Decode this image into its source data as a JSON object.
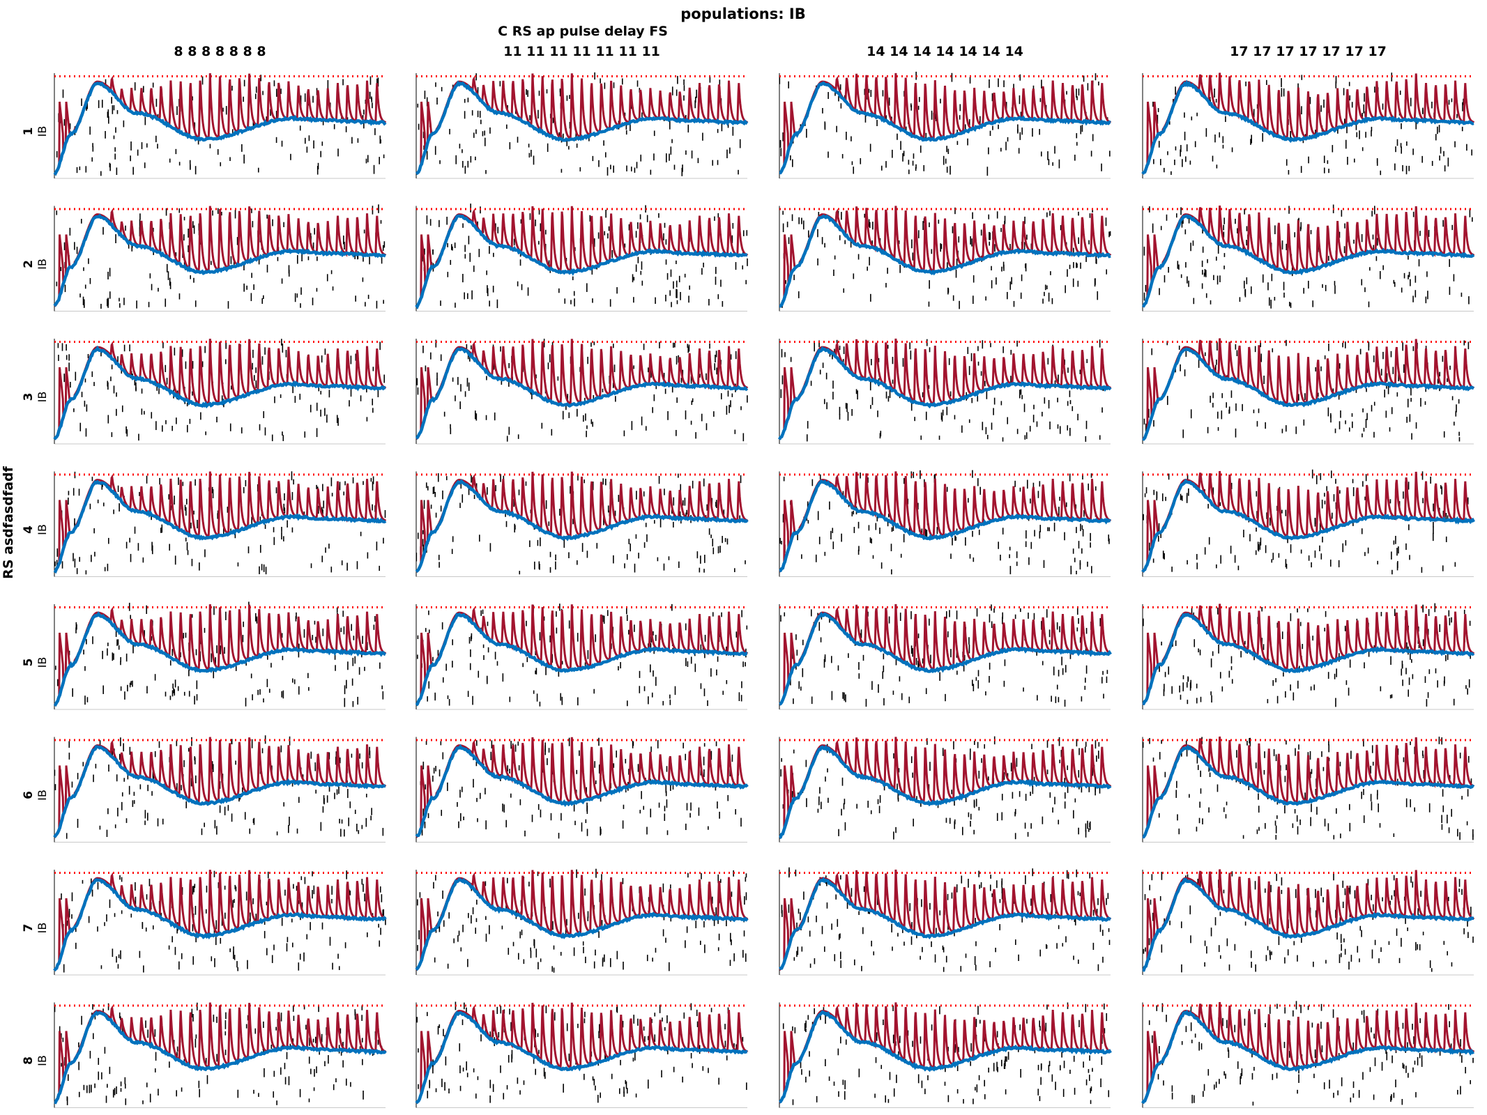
{
  "figure": {
    "suptitle": "populations: IB",
    "varied_label": "C RS ap pulse delay FS",
    "ylabel": "RS asdfasdfadf"
  },
  "columns": [
    {
      "label": "8 8 8 8 8 8 8"
    },
    {
      "label": "11 11 11 11 11 11 11"
    },
    {
      "label": "14 14 14 14 14 14 14"
    },
    {
      "label": "17 17 17 17 17 17 17"
    }
  ],
  "rows": [
    {
      "label": "1",
      "population": "IB"
    },
    {
      "label": "2",
      "population": "IB"
    },
    {
      "label": "3",
      "population": "IB"
    },
    {
      "label": "4",
      "population": "IB"
    },
    {
      "label": "5",
      "population": "IB"
    },
    {
      "label": "6",
      "population": "IB"
    },
    {
      "label": "7",
      "population": "IB"
    },
    {
      "label": "8",
      "population": "IB"
    }
  ],
  "chart_data": {
    "type": "line",
    "layout": "small multiples grid (8 rows x 4 columns), each panel: spike raster + two traces + dotted threshold line",
    "colors": {
      "raster": "#000000",
      "trace_red": "#a2142f",
      "trace_blue": "#0072bd",
      "threshold": "#ff0000"
    },
    "axes_visible": false,
    "grid": false,
    "xlim": [
      0,
      1
    ],
    "ylim": [
      0,
      1
    ],
    "threshold_level": 0.97,
    "blue_trace_keypoints": {
      "x": [
        0,
        0.05,
        0.13,
        0.25,
        0.45,
        0.72,
        0.82,
        1.0
      ],
      "y": [
        0.05,
        0.42,
        0.9,
        0.62,
        0.37,
        0.57,
        0.55,
        0.53
      ]
    },
    "red_trace": {
      "description": "repetitive spiking riding on blue envelope",
      "spike_peak_approx": 0.93,
      "spike_count_approx": 28,
      "initial_spikes_x": [
        0.015,
        0.035
      ]
    }
  }
}
